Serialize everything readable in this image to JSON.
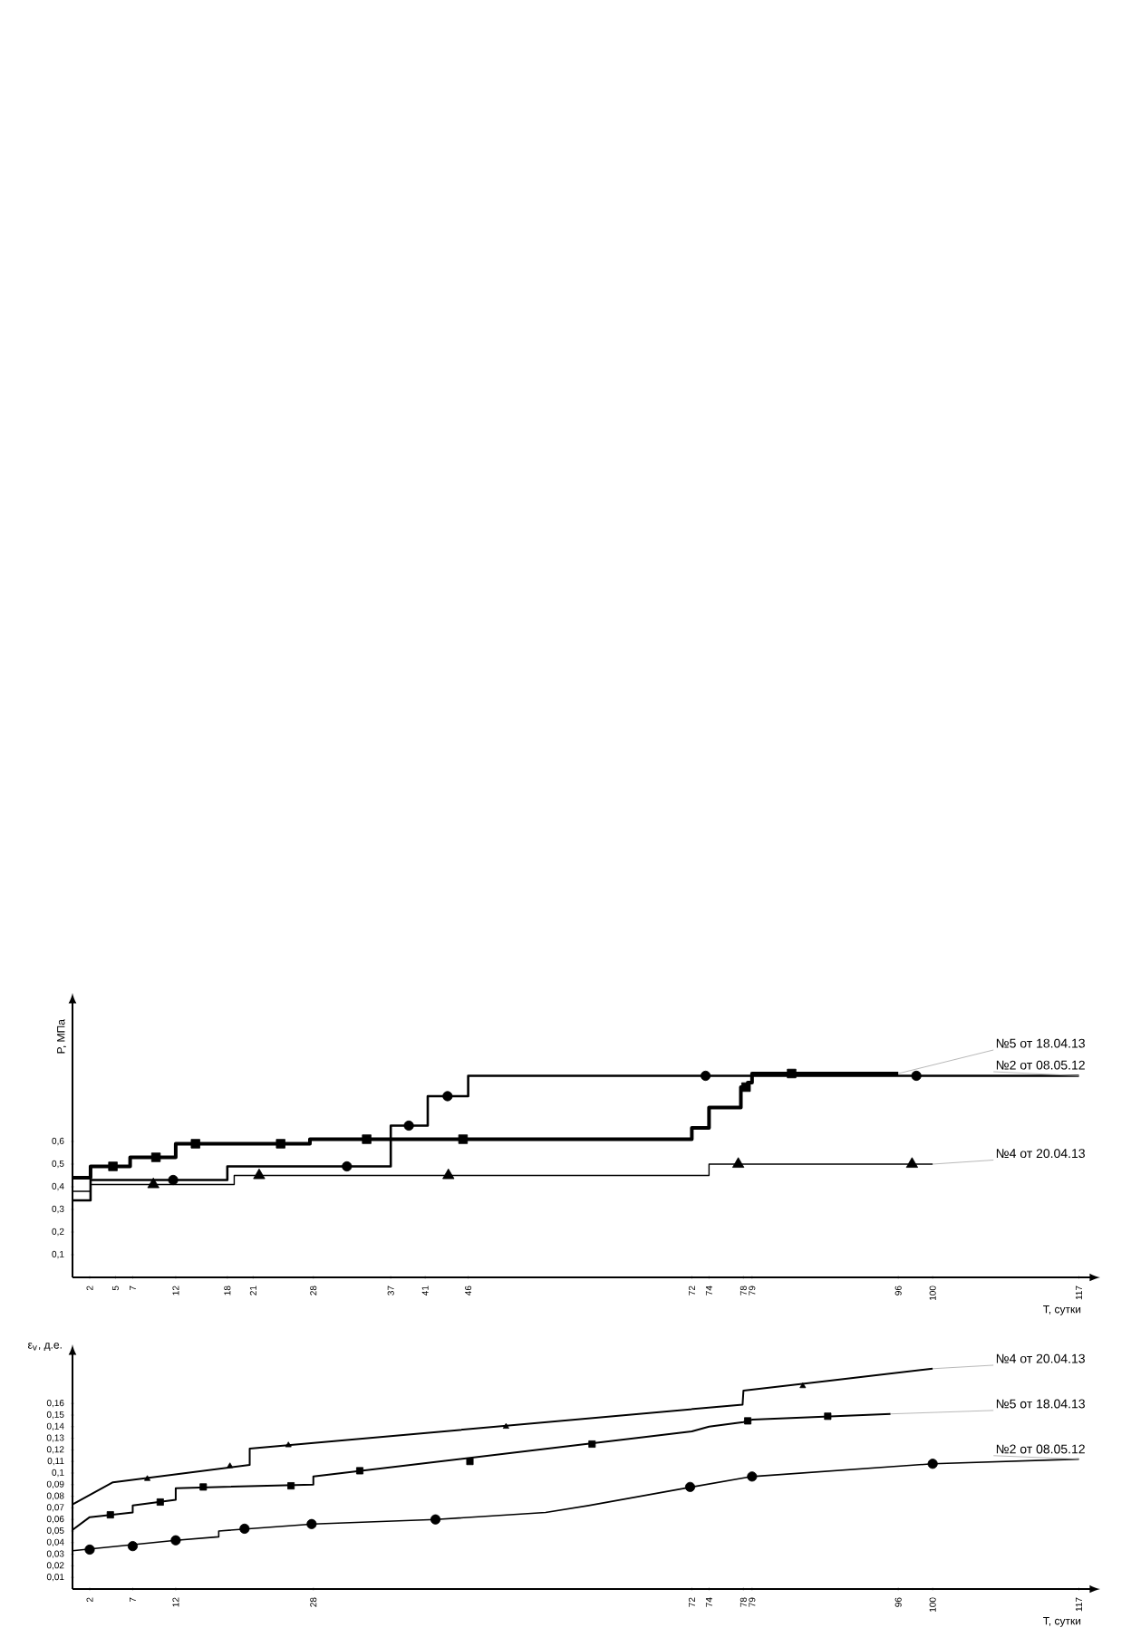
{
  "chart_data": [
    {
      "type": "step",
      "xlabel": "T, сутки",
      "ylabel": "P, МПа",
      "xlim": [
        0,
        118
      ],
      "ylim": [
        0,
        1.2
      ],
      "xticks": [
        2,
        5,
        7,
        12,
        18,
        21,
        28,
        37,
        41,
        46,
        72,
        74,
        78,
        79,
        96,
        100,
        117
      ],
      "yticks": [
        {
          "value": 0.1,
          "label": "0,1"
        },
        {
          "value": 0.2,
          "label": "0,2"
        },
        {
          "value": 0.3,
          "label": "0,3"
        },
        {
          "value": 0.4,
          "label": "0,4"
        },
        {
          "value": 0.5,
          "label": "0,5"
        },
        {
          "value": 0.6,
          "label": "0,6"
        }
      ],
      "series": [
        {
          "name": "№5 от 18.04.13",
          "color": "#000000",
          "x": [
            0,
            2.1,
            6.7,
            12,
            27.6,
            72,
            74,
            77.7,
            78.5,
            79,
            96
          ],
          "values": [
            0.44,
            0.49,
            0.53,
            0.59,
            0.61,
            0.66,
            0.75,
            0.84,
            0.86,
            0.9,
            0.9
          ]
        },
        {
          "name": "№2 от 08.05.12",
          "color": "#000000",
          "x": [
            0,
            2.1,
            18,
            37,
            41.3,
            46,
            117
          ],
          "values": [
            0.34,
            0.43,
            0.49,
            0.67,
            0.8,
            0.89,
            0.89
          ]
        },
        {
          "name": "№4 от 20.04.13",
          "color": "#000000",
          "x": [
            0,
            2.1,
            18.8,
            74,
            100
          ],
          "values": [
            0.38,
            0.41,
            0.45,
            0.5,
            0.5
          ]
        },
        {
          "type": "scatter",
          "marker": "square",
          "color": "#000000",
          "x": [
            4.7,
            9.7,
            14.3,
            24.2,
            34.2,
            45.4,
            78.3,
            83.6
          ],
          "values": [
            0.49,
            0.53,
            0.59,
            0.59,
            0.61,
            0.61,
            0.84,
            0.9
          ]
        },
        {
          "type": "scatter",
          "marker": "circle",
          "color": "#000000",
          "x": [
            11.7,
            31.9,
            39.1,
            43.6,
            73.6,
            98.1
          ],
          "values": [
            0.43,
            0.49,
            0.67,
            0.8,
            0.89,
            0.89
          ]
        },
        {
          "type": "scatter",
          "marker": "triangle",
          "color": "#000000",
          "x": [
            9.4,
            21.7,
            43.7,
            77.4,
            97.6
          ],
          "values": [
            0.41,
            0.45,
            0.45,
            0.5,
            0.5
          ]
        }
      ]
    },
    {
      "type": "line",
      "xlabel": "T, сутки",
      "ylabel": "ε$_{v}$, д.е.",
      "xlim": [
        0,
        118
      ],
      "ylim": [
        0,
        0.2
      ],
      "xticks": [
        2,
        7,
        12,
        28,
        72,
        74,
        78,
        79,
        96,
        100,
        117
      ],
      "yticks": [
        {
          "value": 0.01,
          "label": "0,01"
        },
        {
          "value": 0.02,
          "label": "0,02"
        },
        {
          "value": 0.03,
          "label": "0,03"
        },
        {
          "value": 0.04,
          "label": "0,04"
        },
        {
          "value": 0.05,
          "label": "0,05"
        },
        {
          "value": 0.06,
          "label": "0,06"
        },
        {
          "value": 0.07,
          "label": "0,07"
        },
        {
          "value": 0.08,
          "label": "0,08"
        },
        {
          "value": 0.09,
          "label": "0,09"
        },
        {
          "value": 0.1,
          "label": "0,1"
        },
        {
          "value": 0.11,
          "label": "0,11"
        },
        {
          "value": 0.12,
          "label": "0,12"
        },
        {
          "value": 0.13,
          "label": "0,13"
        },
        {
          "value": 0.14,
          "label": "0,14"
        },
        {
          "value": 0.15,
          "label": "0,15"
        },
        {
          "value": 0.16,
          "label": "0,16"
        }
      ],
      "series": [
        {
          "name": "№4 от 20.04.13",
          "color": "#000000",
          "x": [
            0,
            4.7,
            20.6,
            20.6,
            77.9,
            78,
            100
          ],
          "values": [
            0.073,
            0.092,
            0.107,
            0.121,
            0.159,
            0.171,
            0.19
          ]
        },
        {
          "name": "№5 от 18.04.13",
          "color": "#000000",
          "x": [
            0,
            2,
            7,
            7,
            12,
            12,
            28,
            28,
            72,
            74,
            78,
            79,
            95.1
          ],
          "values": [
            0.051,
            0.062,
            0.066,
            0.072,
            0.077,
            0.087,
            0.09,
            0.097,
            0.136,
            0.14,
            0.144,
            0.146,
            0.151
          ]
        },
        {
          "name": "№2 от 08.05.12",
          "color": "#000000",
          "x": [
            0,
            12,
            17,
            17,
            28,
            42.2,
            55,
            60,
            72,
            79,
            100,
            117
          ],
          "values": [
            0.033,
            0.042,
            0.045,
            0.05,
            0.056,
            0.06,
            0.066,
            0.072,
            0.088,
            0.097,
            0.108,
            0.112
          ]
        },
        {
          "type": "scatter",
          "marker": "triangle",
          "color": "#000000",
          "x": [
            8.7,
            18.3,
            25.1,
            50.4,
            84.9
          ],
          "values": [
            0.095,
            0.106,
            0.124,
            0.14,
            0.175
          ]
        },
        {
          "type": "scatter",
          "marker": "square",
          "color": "#000000",
          "x": [
            4.4,
            10.2,
            15.2,
            25.4,
            33.4,
            46.2,
            60.4,
            78.5,
            87.8
          ],
          "values": [
            0.064,
            0.075,
            0.088,
            0.089,
            0.102,
            0.11,
            0.125,
            0.145,
            0.149
          ]
        },
        {
          "type": "scatter",
          "marker": "circle",
          "color": "#000000",
          "x": [
            2,
            7,
            12,
            20,
            27.8,
            42.2,
            71.8,
            79,
            100
          ],
          "values": [
            0.034,
            0.037,
            0.042,
            0.052,
            0.056,
            0.06,
            0.088,
            0.097,
            0.108
          ]
        }
      ]
    }
  ]
}
